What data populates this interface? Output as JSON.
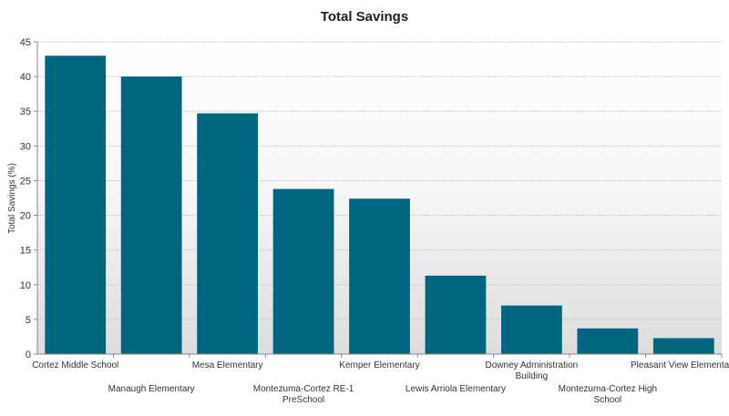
{
  "chart_data": {
    "type": "bar",
    "title": "Total Savings",
    "xlabel": "",
    "ylabel": "Total Savings (%)",
    "ylim": [
      0,
      45
    ],
    "yticks": [
      0,
      5,
      10,
      15,
      20,
      25,
      30,
      35,
      40,
      45
    ],
    "categories": [
      "Cortez Middle School",
      "Manaugh Elementary",
      "Mesa Elementary",
      "Montezuma-Cortez RE-1 PreSchool",
      "Kemper Elementary",
      "Lewis Arriola Elementary",
      "Downey Administration Building",
      "Montezuma-Cortez High School",
      "Pleasant View Elementary"
    ],
    "category_label_lines": [
      [
        "Cortez Middle School"
      ],
      [
        "Manaugh Elementary"
      ],
      [
        "Mesa Elementary"
      ],
      [
        "Montezuma-Cortez RE-1",
        "PreSchool"
      ],
      [
        "Kemper Elementary"
      ],
      [
        "Lewis Arriola Elementary"
      ],
      [
        "Downey Administration",
        "Building"
      ],
      [
        "Montezuma-Cortez High",
        "School"
      ],
      [
        "Pleasant View Elementary"
      ]
    ],
    "values": [
      43,
      40,
      34.7,
      23.8,
      22.4,
      11.3,
      7.0,
      3.7,
      2.3
    ],
    "grid": true,
    "legend": "none",
    "bar_color": "#006680",
    "gridline_color": "#cccccc",
    "background_gradient": [
      "#ffffff",
      "#dddddd"
    ]
  }
}
